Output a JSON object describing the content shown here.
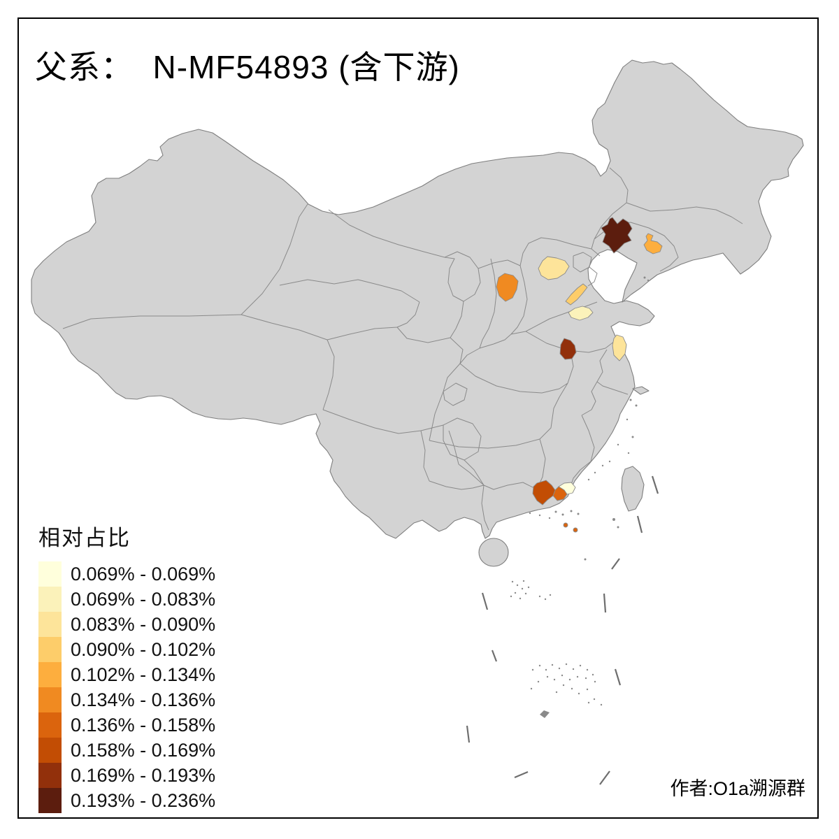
{
  "title": "父系：  N-MF54893 (含下游)",
  "attribution": "作者:O1a溯源群",
  "legend": {
    "title": "相对占比",
    "classes": [
      {
        "label": "0.069% - 0.069%",
        "color": "#FFFFDC"
      },
      {
        "label": "0.069% - 0.083%",
        "color": "#FBF2BA"
      },
      {
        "label": "0.083% - 0.090%",
        "color": "#FDE49A"
      },
      {
        "label": "0.090% - 0.102%",
        "color": "#FDCD6A"
      },
      {
        "label": "0.102% - 0.134%",
        "color": "#FDAE3E"
      },
      {
        "label": "0.134% - 0.136%",
        "color": "#F08A21"
      },
      {
        "label": "0.136% - 0.158%",
        "color": "#DB640D"
      },
      {
        "label": "0.158% - 0.169%",
        "color": "#C24D04"
      },
      {
        "label": "0.169% - 0.193%",
        "color": "#92300B"
      },
      {
        "label": "0.193% - 0.236%",
        "color": "#5C1D0E"
      }
    ]
  },
  "map": {
    "land_color": "#D3D3D3",
    "border_color": "#8A8A8A",
    "outline_color": "#7E7E7E",
    "sea_color": "#FFFFFF",
    "frame_color": "#000000",
    "regions": [
      {
        "name": "liaoning-west",
        "class": 10,
        "range": "0.193% - 0.236%"
      },
      {
        "name": "liaoning-central",
        "class": 5,
        "range": "0.102% - 0.134%"
      },
      {
        "name": "hebei-central",
        "class": 3,
        "range": "0.083% - 0.090%"
      },
      {
        "name": "shanxi-west",
        "class": 6,
        "range": "0.134% - 0.136%"
      },
      {
        "name": "shandong-northwest",
        "class": 4,
        "range": "0.090% - 0.102%"
      },
      {
        "name": "shandong-central",
        "class": 2,
        "range": "0.069% - 0.083%"
      },
      {
        "name": "henan-central",
        "class": 9,
        "range": "0.169% - 0.193%"
      },
      {
        "name": "jiangsu-coastal",
        "class": 3,
        "range": "0.083% - 0.090%"
      },
      {
        "name": "guangdong-west",
        "class": 8,
        "range": "0.158% - 0.169%"
      },
      {
        "name": "guangdong-central",
        "class": 7,
        "range": "0.136% - 0.158%"
      },
      {
        "name": "guangdong-delta-east",
        "class": 1,
        "range": "0.069% - 0.069%"
      },
      {
        "name": "guangdong-islands",
        "class": 7,
        "range": "0.136% - 0.158%"
      }
    ]
  }
}
